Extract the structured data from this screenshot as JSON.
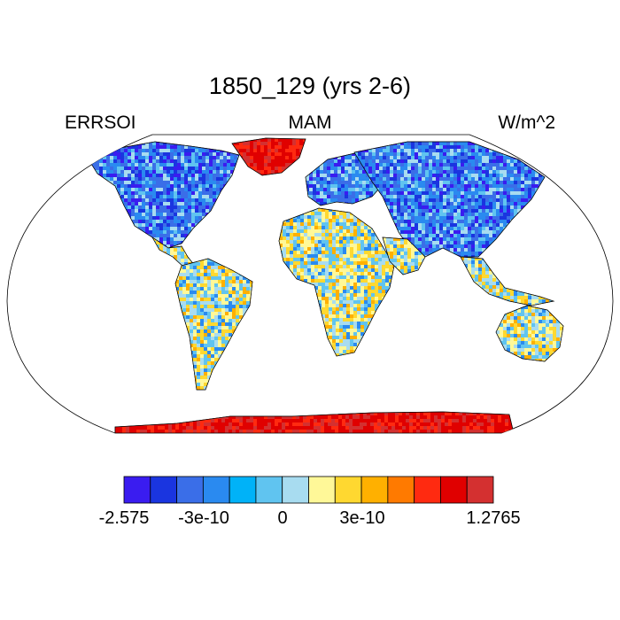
{
  "title": "1850_129 (yrs 2-6)",
  "left_label": "ERRSOI",
  "center_label": "MAM",
  "right_label": "W/m^2",
  "colorbar": {
    "colors": [
      "#3a1cf0",
      "#1a35e0",
      "#3a6ee8",
      "#2a8af0",
      "#00b2f8",
      "#60c4f0",
      "#a8dcf0",
      "#fff898",
      "#ffd830",
      "#ffb000",
      "#ff7a00",
      "#ff2a10",
      "#e00000",
      "#d43030"
    ],
    "tick_labels": [
      "-2.575",
      "-3e-10",
      "0",
      "3e-10",
      "1.2765"
    ]
  },
  "chart_data": {
    "type": "heatmap",
    "title": "1850_129 (yrs 2-6)",
    "variable": "ERRSOI",
    "season": "MAM",
    "units": "W/m^2",
    "color_scale_min": -2.575,
    "color_scale_max": 1.2765,
    "regions": [
      {
        "name": "Greenland",
        "level": "high"
      },
      {
        "name": "Antarctica",
        "level": "high"
      },
      {
        "name": "Canada",
        "level": "low"
      },
      {
        "name": "Siberia",
        "level": "low"
      },
      {
        "name": "Tibetan Plateau",
        "level": "low"
      },
      {
        "name": "Africa",
        "level": "near zero, slightly positive"
      },
      {
        "name": "Australia",
        "level": "near zero"
      }
    ]
  }
}
